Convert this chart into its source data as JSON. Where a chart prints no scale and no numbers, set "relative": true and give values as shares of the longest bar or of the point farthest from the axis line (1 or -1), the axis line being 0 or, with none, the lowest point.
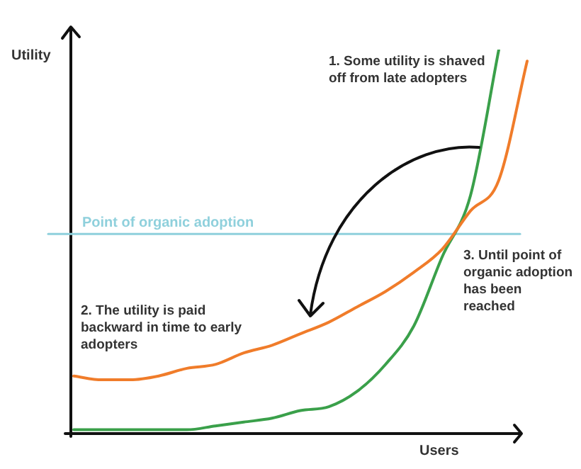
{
  "chart_data": {
    "type": "line",
    "relative": true,
    "xlabel": "Users",
    "ylabel": "Utility",
    "marker": "none",
    "categories": [
      null,
      null,
      null,
      null,
      null,
      null,
      null,
      null,
      null,
      null,
      null,
      null,
      null,
      null,
      null,
      null,
      null
    ],
    "series": [
      {
        "color": "#f07c2a",
        "values": [
          0.15,
          0.14,
          0.14,
          0.15,
          0.17,
          0.18,
          0.21,
          0.23,
          0.26,
          0.29,
          0.33,
          0.37,
          0.42,
          0.48,
          0.58,
          0.66,
          0.97
        ]
      },
      {
        "color": "#3aa04a",
        "values": [
          0.01,
          0.01,
          0.01,
          0.01,
          0.01,
          0.02,
          0.03,
          0.04,
          0.06,
          0.07,
          0.11,
          0.18,
          0.28,
          0.46,
          0.62,
          1,
          null
        ]
      }
    ],
    "ref_lines": [
      {
        "axis": "y",
        "value": 0.52,
        "label": "Point of organic adoption",
        "color": "#8fd0dc"
      }
    ],
    "annotations": [
      "1. Some utility is shaved off from late adopters",
      "2. The utility is paid backward in time to early adopters",
      "3. Until point of organic adoption has been reached"
    ]
  }
}
